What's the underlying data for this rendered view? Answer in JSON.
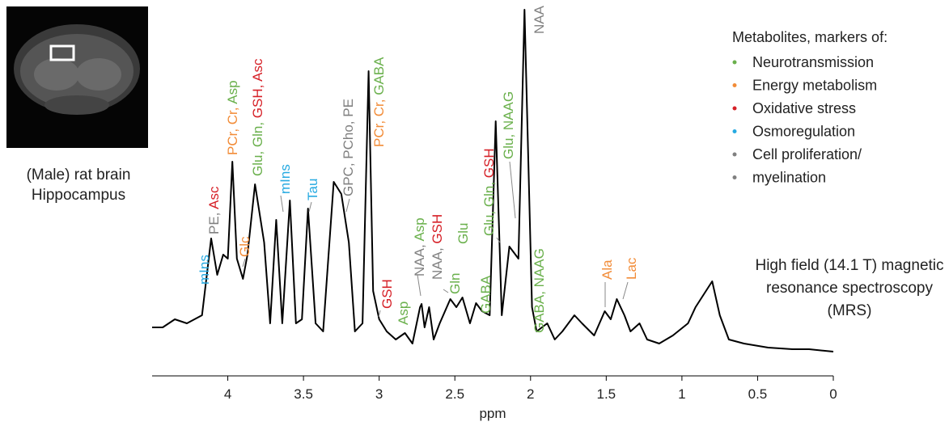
{
  "chart_data": {
    "type": "line",
    "color": "#000000",
    "xlabel": "ppm",
    "xlim": [
      4.5,
      0
    ],
    "xticks": [
      4,
      3.5,
      3,
      2.5,
      2,
      1.5,
      1,
      0.5,
      0
    ],
    "x": [
      4.5,
      4.43,
      4.35,
      4.27,
      4.17,
      4.11,
      4.07,
      4.03,
      4.0,
      3.97,
      3.94,
      3.9,
      3.87,
      3.82,
      3.76,
      3.72,
      3.68,
      3.64,
      3.59,
      3.55,
      3.51,
      3.47,
      3.42,
      3.37,
      3.3,
      3.25,
      3.2,
      3.16,
      3.11,
      3.07,
      3.04,
      3.0,
      2.95,
      2.89,
      2.83,
      2.78,
      2.73,
      2.72,
      2.7,
      2.67,
      2.64,
      2.6,
      2.53,
      2.49,
      2.45,
      2.4,
      2.36,
      2.32,
      2.27,
      2.23,
      2.19,
      2.14,
      2.08,
      2.04,
      1.99,
      1.96,
      1.89,
      1.84,
      1.79,
      1.71,
      1.66,
      1.58,
      1.51,
      1.47,
      1.43,
      1.38,
      1.34,
      1.28,
      1.23,
      1.15,
      1.06,
      0.96,
      0.91,
      0.8,
      0.75,
      0.69,
      0.59,
      0.43,
      0.27,
      0.16,
      0.0
    ],
    "values": [
      60,
      60,
      70,
      65,
      75,
      170,
      125,
      150,
      145,
      265,
      145,
      120,
      150,
      237,
      165,
      65,
      193,
      65,
      217,
      65,
      70,
      207,
      65,
      55,
      240,
      225,
      165,
      55,
      65,
      377,
      105,
      70,
      55,
      45,
      53,
      40,
      85,
      89,
      60,
      85,
      45,
      65,
      95,
      85,
      97,
      65,
      90,
      80,
      75,
      315,
      75,
      160,
      145,
      453,
      85,
      55,
      65,
      45,
      55,
      75,
      65,
      50,
      80,
      70,
      95,
      75,
      55,
      65,
      45,
      40,
      50,
      65,
      85,
      117,
      75,
      45,
      40,
      35,
      33,
      33,
      30
    ],
    "annotations": [
      [
        {
          "text": "mIns",
          "color": "#27aae1"
        }
      ],
      [
        {
          "text": "PE, ",
          "color": "#808080"
        },
        {
          "text": "Asc",
          "color": "#d62027"
        }
      ],
      [
        {
          "text": "PCr, Cr, ",
          "color": "#f28c38"
        },
        {
          "text": "Asp",
          "color": "#6ab04c"
        }
      ],
      [
        {
          "text": "Glc",
          "color": "#f28c38"
        }
      ],
      [
        {
          "text": "Glu, Gln, ",
          "color": "#6ab04c"
        },
        {
          "text": "GSH, Asc",
          "color": "#d62027"
        }
      ],
      [
        {
          "text": "mIns",
          "color": "#27aae1"
        }
      ],
      [
        {
          "text": "Tau",
          "color": "#27aae1"
        }
      ],
      [
        {
          "text": "GPC, PCho, PE",
          "color": "#808080"
        }
      ],
      [
        {
          "text": "PCr, Cr, ",
          "color": "#f28c38"
        },
        {
          "text": "GABA",
          "color": "#6ab04c"
        }
      ],
      [
        {
          "text": "GSH",
          "color": "#d62027"
        }
      ],
      [
        {
          "text": "Asp",
          "color": "#6ab04c"
        }
      ],
      [
        {
          "text": "NAA, ",
          "color": "#808080"
        },
        {
          "text": "Asp",
          "color": "#6ab04c"
        }
      ],
      [
        {
          "text": "NAA, ",
          "color": "#808080"
        },
        {
          "text": "GSH",
          "color": "#d62027"
        }
      ],
      [
        {
          "text": "Gln",
          "color": "#6ab04c"
        }
      ],
      [
        {
          "text": "Glu",
          "color": "#6ab04c"
        }
      ],
      [
        {
          "text": "GABA",
          "color": "#6ab04c"
        }
      ],
      [
        {
          "text": "Glu, Gln, ",
          "color": "#6ab04c"
        },
        {
          "text": "GSH",
          "color": "#d62027"
        }
      ],
      [
        {
          "text": "Glu, NAAG",
          "color": "#6ab04c"
        }
      ],
      [
        {
          "text": "NAA",
          "color": "#808080"
        }
      ],
      [
        {
          "text": "GABA, NAAG",
          "color": "#6ab04c"
        }
      ],
      [
        {
          "text": "Ala",
          "color": "#f28c38"
        }
      ],
      [
        {
          "text": "Lac",
          "color": "#f28c38"
        }
      ]
    ],
    "legend": {
      "title": "Metabolites, markers of:",
      "items": [
        {
          "name": "Neurotransmission",
          "color": "#6ab04c"
        },
        {
          "name": "Energy metabolism",
          "color": "#f28c38"
        },
        {
          "name": "Oxidative stress",
          "color": "#d62027"
        },
        {
          "name": "Osmoregulation",
          "color": "#27aae1"
        },
        {
          "name": "Cell proliferation/",
          "color": "#808080"
        },
        {
          "name": "myelination",
          "color": "#808080"
        }
      ]
    },
    "inset_caption": [
      "(Male) rat brain",
      "Hippocampus"
    ],
    "note": [
      "High field (14.1 T) magnetic",
      "resonance spectroscopy",
      "(MRS)"
    ]
  }
}
